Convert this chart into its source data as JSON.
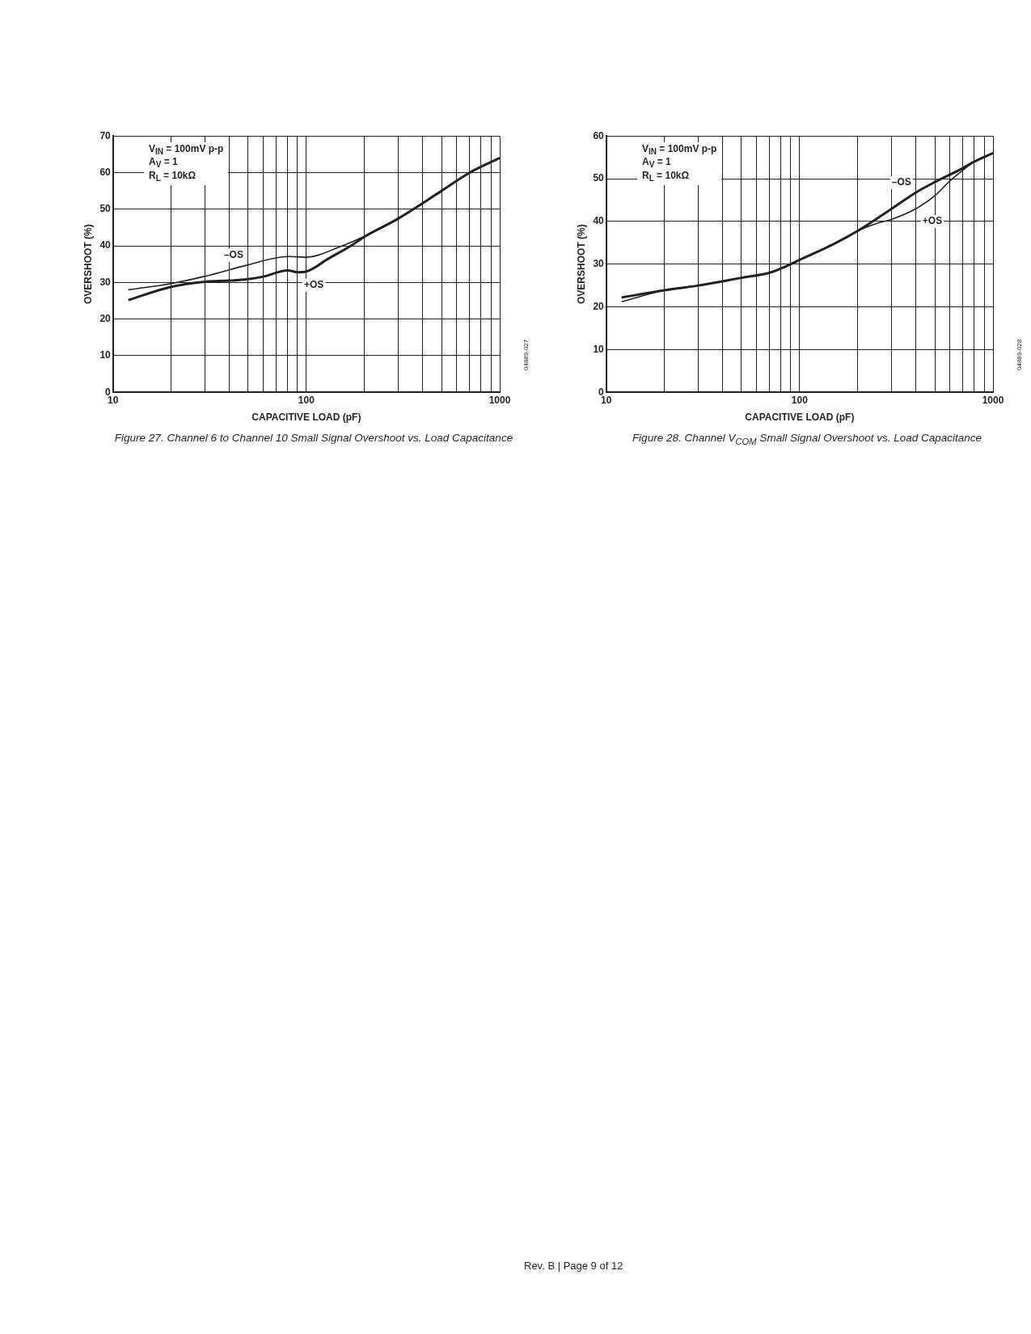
{
  "chart_data": [
    {
      "type": "line",
      "title": "Figure 27. Channel 6 to Channel 10 Small Signal Overshoot vs. Load Capacitance",
      "xlabel": "CAPACITIVE LOAD (pF)",
      "ylabel": "OVERSHOOT (%)",
      "log": "x",
      "grid": true,
      "legend": false,
      "xlim": [
        10,
        1000
      ],
      "xticks": [
        10,
        {
          "value": 20,
          "label": null
        },
        {
          "value": 30,
          "label": null
        },
        {
          "value": 40,
          "label": null
        },
        {
          "value": 50,
          "label": null
        },
        {
          "value": 60,
          "label": null
        },
        {
          "value": 70,
          "label": null
        },
        {
          "value": 80,
          "label": null
        },
        {
          "value": 90,
          "label": null
        },
        100,
        {
          "value": 200,
          "label": null
        },
        {
          "value": 300,
          "label": null
        },
        {
          "value": 400,
          "label": null
        },
        {
          "value": 500,
          "label": null
        },
        {
          "value": 600,
          "label": null
        },
        {
          "value": 700,
          "label": null
        },
        {
          "value": 800,
          "label": null
        },
        {
          "value": 900,
          "label": null
        },
        1000
      ],
      "ylim": [
        0,
        70
      ],
      "yticks": [
        0,
        10,
        20,
        30,
        40,
        50,
        60,
        70
      ],
      "series": [
        {
          "name": "–OS",
          "color": "#231f20",
          "x": [
            12,
            20,
            30,
            50,
            80,
            100,
            150,
            200,
            300,
            500,
            700,
            1000
          ],
          "values": [
            28,
            29.7,
            31.7,
            34.8,
            37.1,
            36.9,
            39.8,
            42.6,
            47.5,
            55,
            60,
            64
          ]
        },
        {
          "name": "+OS",
          "color": "#231f20",
          "x": [
            12,
            20,
            30,
            40,
            50,
            60,
            80,
            90,
            100,
            130,
            170,
            200,
            300,
            500,
            700,
            1000
          ],
          "values": [
            25.2,
            28.8,
            30.2,
            30.5,
            30.9,
            31.6,
            33.3,
            32.8,
            33,
            36.5,
            40,
            42.5,
            47.5,
            55,
            60,
            64
          ]
        }
      ],
      "annotations": [
        "V$_{IN}$ = 100mV p-p",
        "A$_{V}$ = 1",
        "R$_{L}$ = 10kΩ",
        "04889-027"
      ]
    },
    {
      "type": "line",
      "title": "Figure 28. Channel V$_{COM}$ Small Signal Overshoot vs. Load Capacitance",
      "xlabel": "CAPACITIVE LOAD (pF)",
      "ylabel": "OVERSHOOT (%)",
      "log": "x",
      "grid": true,
      "legend": false,
      "xlim": [
        10,
        1000
      ],
      "xticks": [
        10,
        {
          "value": 20,
          "label": null
        },
        {
          "value": 30,
          "label": null
        },
        {
          "value": 40,
          "label": null
        },
        {
          "value": 50,
          "label": null
        },
        {
          "value": 60,
          "label": null
        },
        {
          "value": 70,
          "label": null
        },
        {
          "value": 80,
          "label": null
        },
        {
          "value": 90,
          "label": null
        },
        100,
        {
          "value": 200,
          "label": null
        },
        {
          "value": 300,
          "label": null
        },
        {
          "value": 400,
          "label": null
        },
        {
          "value": 500,
          "label": null
        },
        {
          "value": 600,
          "label": null
        },
        {
          "value": 700,
          "label": null
        },
        {
          "value": 800,
          "label": null
        },
        {
          "value": 900,
          "label": null
        },
        1000
      ],
      "ylim": [
        0,
        60
      ],
      "yticks": [
        0,
        10,
        20,
        30,
        40,
        50,
        60
      ],
      "series": [
        {
          "name": "–OS",
          "color": "#231f20",
          "x": [
            12,
            20,
            30,
            50,
            70,
            90,
            100,
            150,
            200,
            300,
            400,
            500,
            700,
            800,
            1000
          ],
          "values": [
            22.2,
            23.9,
            25,
            26.8,
            28,
            30,
            31,
            34.7,
            37.8,
            43,
            46.8,
            49.2,
            52.5,
            54,
            56
          ]
        },
        {
          "name": "+OS",
          "color": "#231f20",
          "x": [
            12,
            20,
            30,
            50,
            70,
            90,
            100,
            150,
            200,
            250,
            300,
            400,
            500,
            600,
            700,
            800,
            1000
          ],
          "values": [
            21.2,
            23.9,
            25,
            26.8,
            28,
            30,
            31,
            34.7,
            37.8,
            39.5,
            40.5,
            43,
            46,
            49.5,
            52,
            54,
            56
          ]
        }
      ],
      "annotations": [
        "V$_{IN}$ = 100mV p-p",
        "A$_{V}$ = 1",
        "R$_{L}$ = 10kΩ",
        "04889-028",
        "Rev. B | Page 9 of 12"
      ]
    }
  ]
}
